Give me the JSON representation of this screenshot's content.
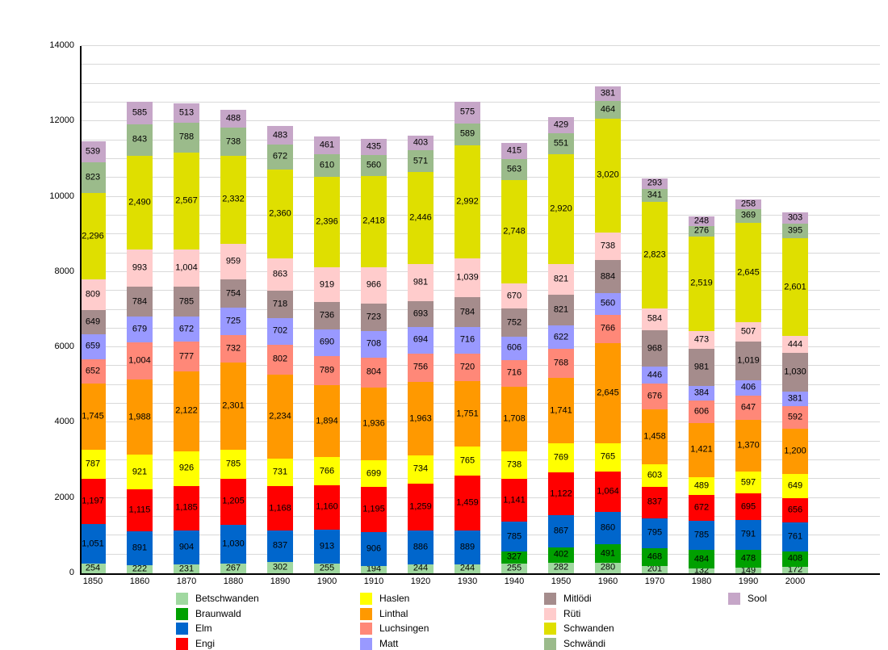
{
  "chart_data": {
    "type": "bar",
    "stacked": true,
    "grid": true,
    "legend_position": "bottom",
    "ylim": [
      0,
      14000
    ],
    "yticks": [
      0,
      2000,
      4000,
      6000,
      8000,
      10000,
      12000,
      14000
    ],
    "grid_step": 500,
    "categories": [
      "1850",
      "1860",
      "1870",
      "1880",
      "1890",
      "1900",
      "1910",
      "1920",
      "1930",
      "1940",
      "1950",
      "1960",
      "1970",
      "1980",
      "1990",
      "2000"
    ],
    "series": [
      {
        "name": "Betschwanden",
        "color": "#a0d8a0",
        "values": [
          254,
          222,
          231,
          267,
          302,
          255,
          194,
          244,
          244,
          255,
          282,
          280,
          201,
          132,
          149,
          172
        ]
      },
      {
        "name": "Braunwald",
        "color": "#00a000",
        "values": [
          null,
          null,
          null,
          null,
          null,
          null,
          null,
          null,
          null,
          327,
          402,
          491,
          468,
          484,
          478,
          408
        ]
      },
      {
        "name": "Elm",
        "color": "#0066cc",
        "values": [
          1051,
          891,
          904,
          1030,
          837,
          913,
          906,
          886,
          889,
          785,
          867,
          860,
          795,
          785,
          791,
          761
        ]
      },
      {
        "name": "Engi",
        "color": "#ff0000",
        "values": [
          1197,
          1115,
          1185,
          1205,
          1168,
          1160,
          1195,
          1259,
          1459,
          1141,
          1122,
          1064,
          837,
          672,
          695,
          656
        ]
      },
      {
        "name": "Haslen",
        "color": "#ffff00",
        "values": [
          787,
          921,
          926,
          785,
          731,
          766,
          699,
          734,
          765,
          738,
          769,
          765,
          603,
          489,
          597,
          649
        ]
      },
      {
        "name": "Linthal",
        "color": "#ff9900",
        "values": [
          1745,
          1988,
          2122,
          2301,
          2234,
          1894,
          1936,
          1963,
          1751,
          1708,
          1741,
          2645,
          1458,
          1421,
          1370,
          1200
        ]
      },
      {
        "name": "Luchsingen",
        "color": "#ff8878",
        "values": [
          652,
          1004,
          777,
          732,
          802,
          789,
          804,
          756,
          720,
          716,
          768,
          766,
          676,
          606,
          647,
          592
        ]
      },
      {
        "name": "Matt",
        "color": "#9999ff",
        "values": [
          659,
          679,
          672,
          725,
          702,
          690,
          708,
          694,
          716,
          606,
          622,
          560,
          446,
          384,
          406,
          381
        ]
      },
      {
        "name": "Mitlödi",
        "color": "#a58c8c",
        "values": [
          649,
          784,
          785,
          754,
          718,
          736,
          723,
          693,
          784,
          752,
          821,
          884,
          968,
          981,
          1019,
          1030
        ]
      },
      {
        "name": "Rüti",
        "color": "#ffcccc",
        "values": [
          809,
          993,
          1004,
          959,
          863,
          919,
          966,
          981,
          1039,
          670,
          821,
          738,
          584,
          473,
          507,
          444
        ]
      },
      {
        "name": "Schwanden",
        "color": "#dfdf00",
        "values": [
          2296,
          2490,
          2567,
          2332,
          2360,
          2396,
          2418,
          2446,
          2992,
          2748,
          2920,
          3020,
          2823,
          2519,
          2645,
          2601
        ]
      },
      {
        "name": "Schwändi",
        "color": "#9bbb8b",
        "values": [
          823,
          843,
          788,
          738,
          672,
          610,
          560,
          571,
          589,
          563,
          551,
          464,
          341,
          276,
          369,
          395
        ]
      },
      {
        "name": "Sool",
        "color": "#c6a6c8",
        "values": [
          539,
          585,
          513,
          488,
          483,
          461,
          435,
          403,
          575,
          415,
          429,
          381,
          293,
          248,
          258,
          303
        ]
      }
    ]
  }
}
